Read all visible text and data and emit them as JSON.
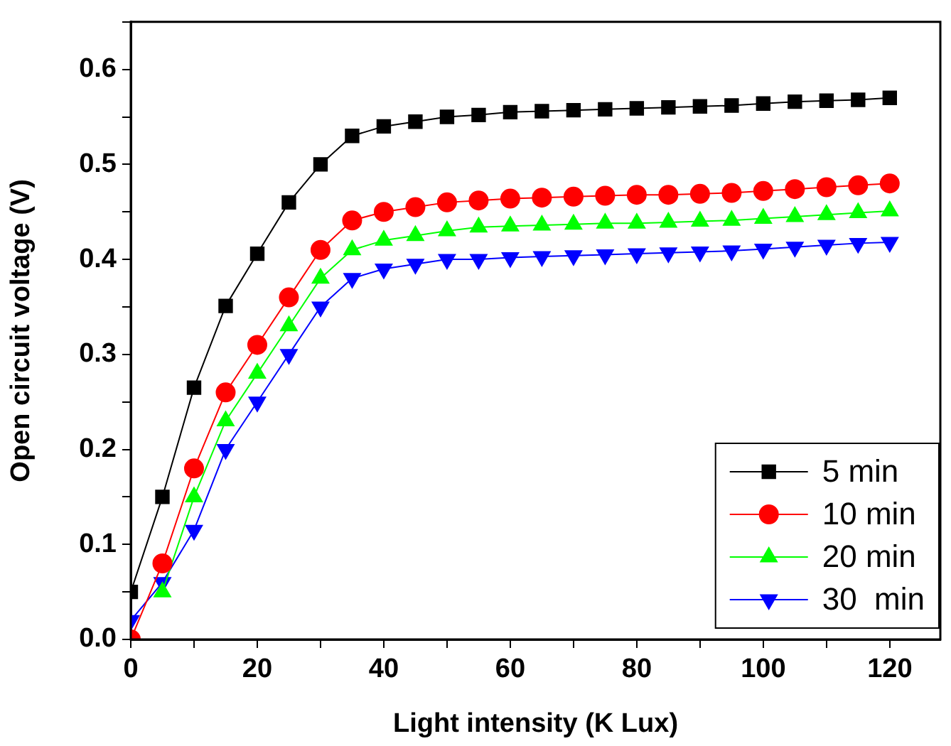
{
  "chart_data": {
    "type": "line",
    "xlabel": "Light intensity (K Lux)",
    "ylabel": "Open circuit voltage (V)",
    "x": [
      0,
      5,
      10,
      15,
      20,
      25,
      30,
      35,
      40,
      45,
      50,
      55,
      60,
      65,
      70,
      75,
      80,
      85,
      90,
      95,
      100,
      105,
      110,
      115,
      120
    ],
    "xlim": [
      0,
      128
    ],
    "xticks": [
      0,
      {
        "value": 10,
        "label": null
      },
      20,
      {
        "value": 30,
        "label": null
      },
      40,
      {
        "value": 50,
        "label": null
      },
      60,
      {
        "value": 70,
        "label": null
      },
      80,
      {
        "value": 90,
        "label": null
      },
      100,
      {
        "value": 110,
        "label": null
      },
      120
    ],
    "ylim": [
      0,
      0.65
    ],
    "yticks": [
      {
        "value": 0,
        "label": "0.0"
      },
      {
        "value": 0.05,
        "label": null
      },
      0.1,
      {
        "value": 0.15,
        "label": null
      },
      0.2,
      {
        "value": 0.25,
        "label": null
      },
      0.3,
      {
        "value": 0.35,
        "label": null
      },
      0.4,
      {
        "value": 0.45,
        "label": null
      },
      0.5,
      {
        "value": 0.55,
        "label": null
      },
      0.6,
      {
        "value": 0.65,
        "label": null
      }
    ],
    "grid": false,
    "legend": "bottom right",
    "line_style": "solid",
    "series": [
      {
        "name": "5 min",
        "color": "#000000",
        "marker": "square",
        "values": [
          0.05,
          0.15,
          0.265,
          0.351,
          0.406,
          0.46,
          0.5,
          0.53,
          0.54,
          0.545,
          0.55,
          0.552,
          0.555,
          0.556,
          0.557,
          0.558,
          0.559,
          0.56,
          0.561,
          0.562,
          0.564,
          0.566,
          0.567,
          0.568,
          0.57
        ]
      },
      {
        "name": "10 min",
        "color": "#ff0000",
        "marker": "circle",
        "values": [
          0.0,
          0.08,
          0.18,
          0.26,
          0.31,
          0.36,
          0.41,
          0.441,
          0.45,
          0.455,
          0.46,
          0.462,
          0.464,
          0.465,
          0.466,
          0.467,
          0.468,
          0.468,
          0.469,
          0.47,
          0.472,
          0.474,
          0.476,
          0.478,
          0.48
        ]
      },
      {
        "name": "20 min",
        "color": "#00ff00",
        "marker": "triangle",
        "values": [
          null,
          0.05,
          0.15,
          0.23,
          0.28,
          0.33,
          0.38,
          0.41,
          0.42,
          0.425,
          0.43,
          0.434,
          0.435,
          0.436,
          0.437,
          0.438,
          0.438,
          0.439,
          0.44,
          0.441,
          0.443,
          0.445,
          0.447,
          0.449,
          0.451
        ]
      },
      {
        "name": "30  min",
        "color": "#0000ff",
        "marker": "triangle-down",
        "values": [
          0.02,
          0.06,
          0.115,
          0.2,
          0.25,
          0.3,
          0.35,
          0.38,
          0.39,
          0.395,
          0.4,
          0.4,
          0.402,
          0.403,
          0.404,
          0.405,
          0.406,
          0.407,
          0.408,
          0.409,
          0.411,
          0.413,
          0.415,
          0.417,
          0.418
        ]
      }
    ]
  }
}
